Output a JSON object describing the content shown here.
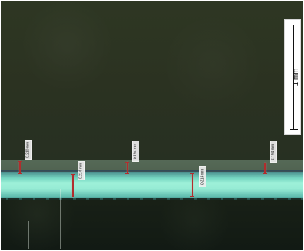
{
  "scale_bar": {
    "label": "1 mm"
  },
  "measurements": [
    {
      "label": "0.210 mm"
    },
    {
      "label": "0.214 mm"
    },
    {
      "label": "0.194 mm"
    },
    {
      "label": "0.214 mm"
    },
    {
      "label": "0.194 mm"
    }
  ],
  "colors": {
    "upper_background": "#2e3723",
    "transition_band": "#556956",
    "cyan_layer": "#96ebd4",
    "lower_background": "#121a14",
    "measurement_line": "#b12d2d",
    "scale_box": "#ffffff"
  }
}
